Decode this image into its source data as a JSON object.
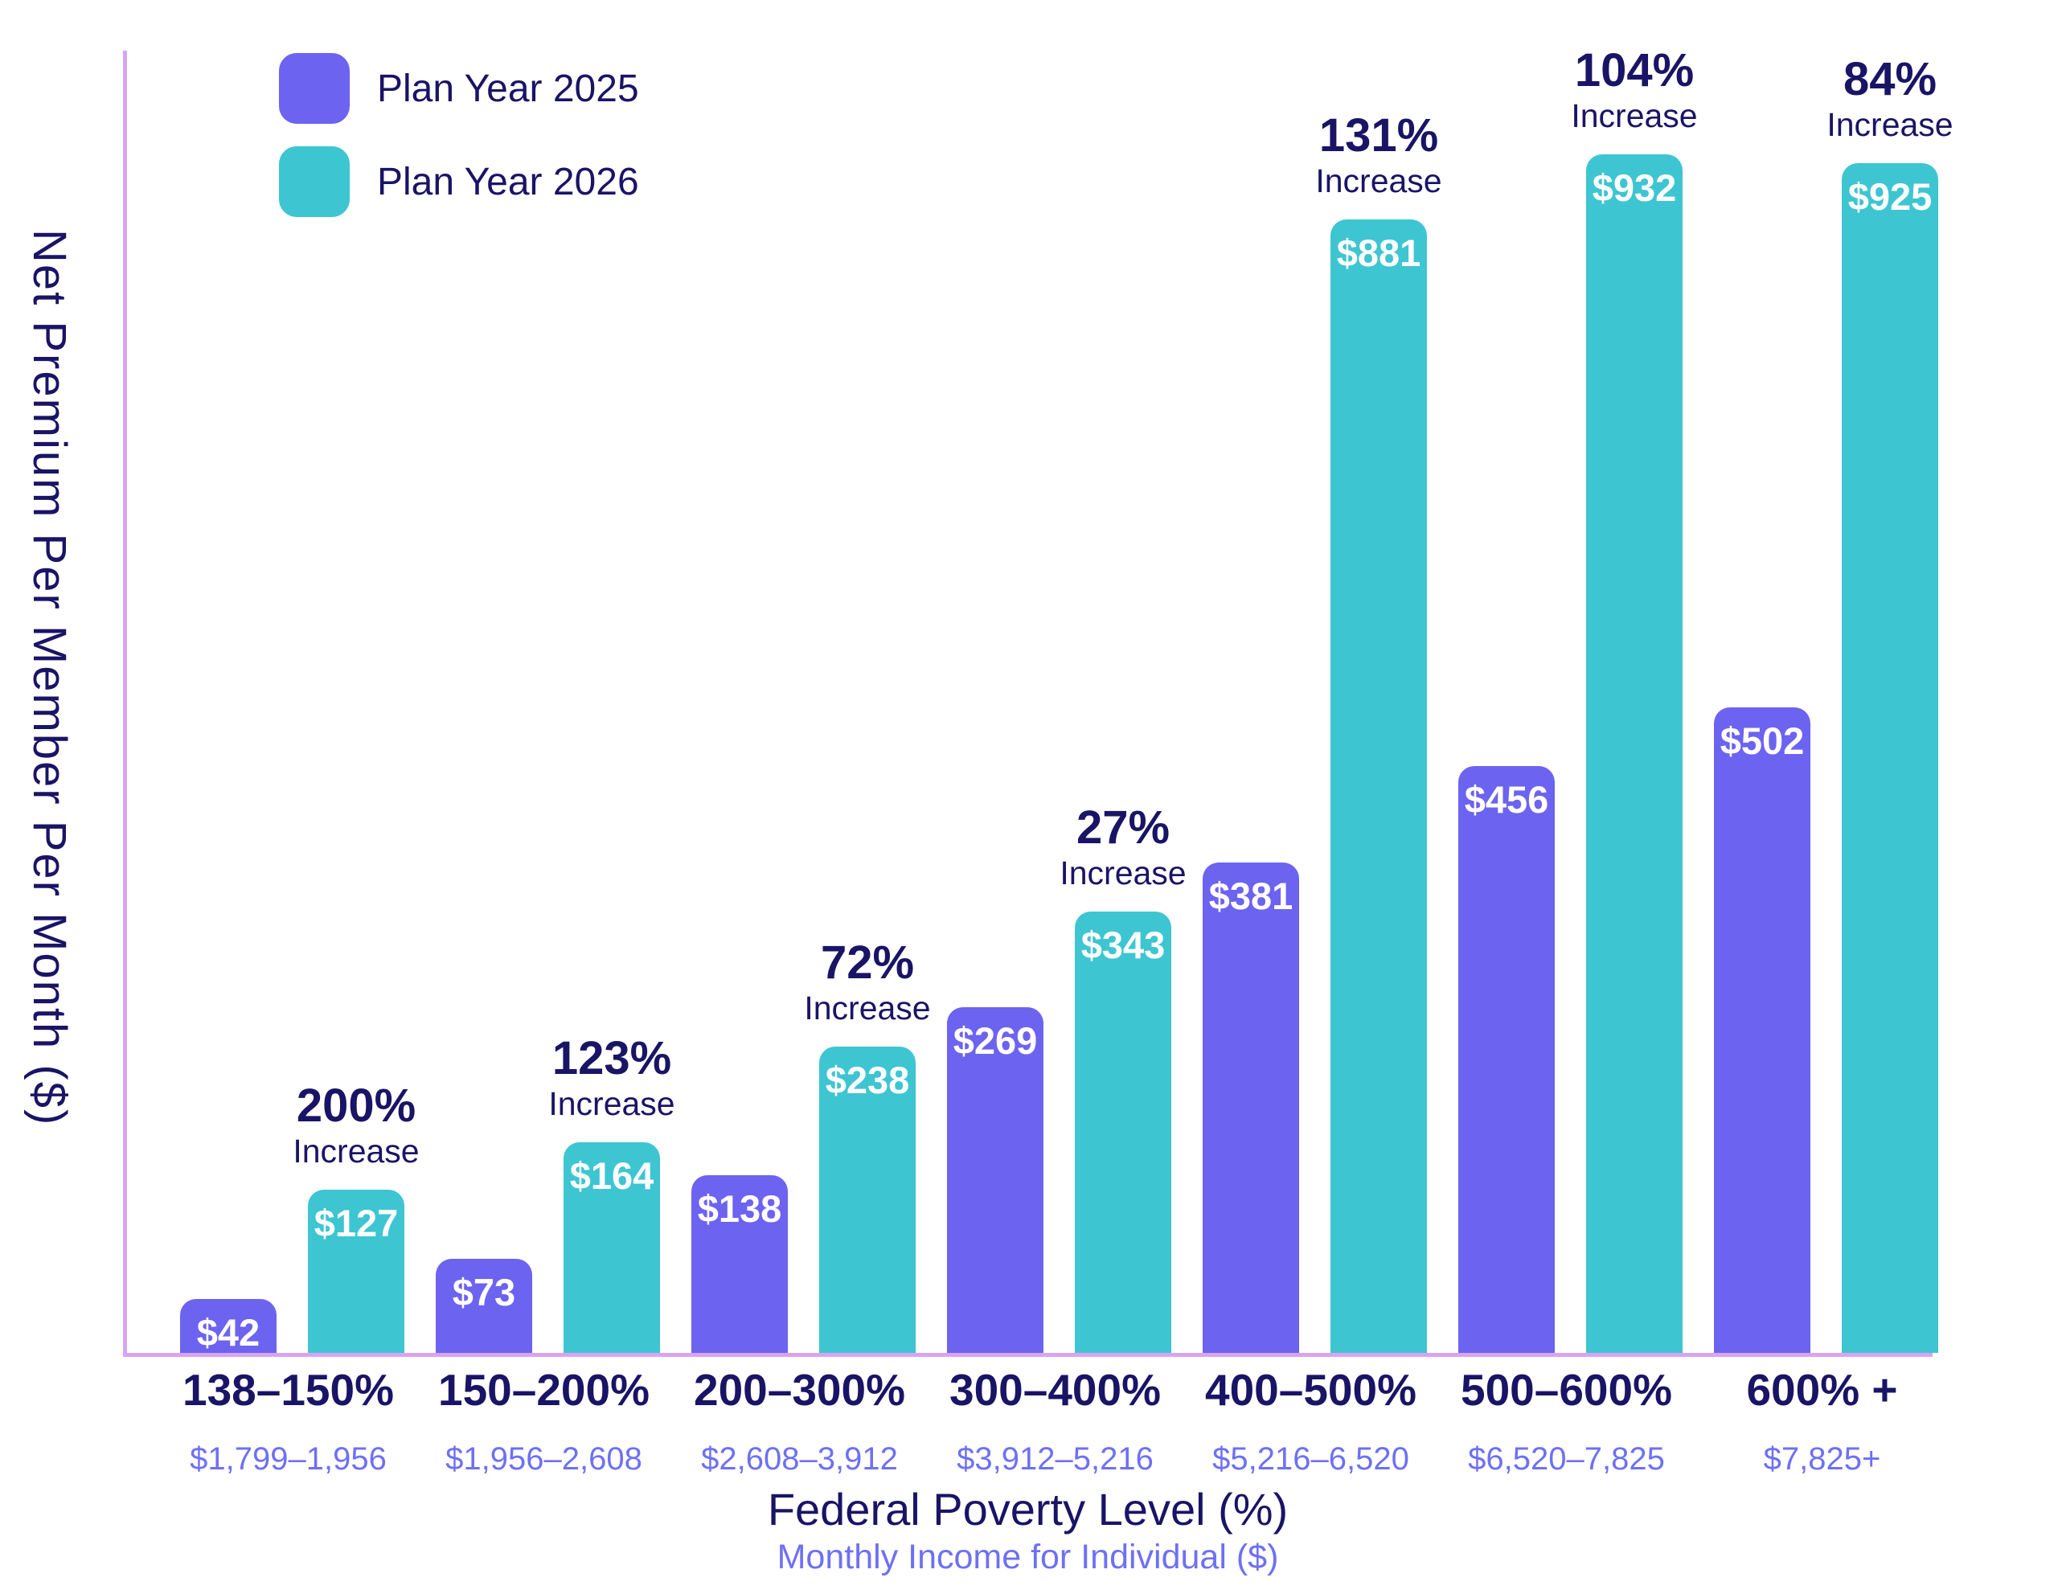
{
  "chart_data": {
    "type": "bar",
    "title": "",
    "ylabel": "Net Premium Per Member Per Month ($)",
    "xlabel": "Federal Poverty Level (%)",
    "xlabel_sub": "Monthly Income for Individual ($)",
    "legend_position": "top-left",
    "grid": false,
    "value_prefix": "$",
    "increase_word": "Increase",
    "categories": [
      "138–150%",
      "150–200%",
      "200–300%",
      "300–400%",
      "400–500%",
      "500–600%",
      "600% +"
    ],
    "income_labels": [
      "$1,799–1,956",
      "$1,956–2,608",
      "$2,608–3,912",
      "$3,912–5,216",
      "$5,216–6,520",
      "$6,520–7,825",
      "$7,825+"
    ],
    "increase_labels": [
      "200%",
      "123%",
      "72%",
      "27%",
      "131%",
      "104%",
      "84%"
    ],
    "series": [
      {
        "name": "Plan Year 2025",
        "color": "#6C63F0",
        "values": [
          42,
          73,
          138,
          269,
          381,
          456,
          502
        ]
      },
      {
        "name": "Plan Year 2026",
        "color": "#3EC5D2",
        "values": [
          127,
          164,
          238,
          343,
          881,
          932,
          925
        ]
      }
    ],
    "ylim": [
      0,
      1000
    ],
    "colors": {
      "bar_2025": "#6C63F0",
      "bar_2026": "#3EC5D2",
      "axis_line": "#D8A4F2",
      "text_navy": "#1A1466",
      "text_periwinkle": "#6E70F5",
      "bar_value_text": "#FFFFFF"
    }
  }
}
